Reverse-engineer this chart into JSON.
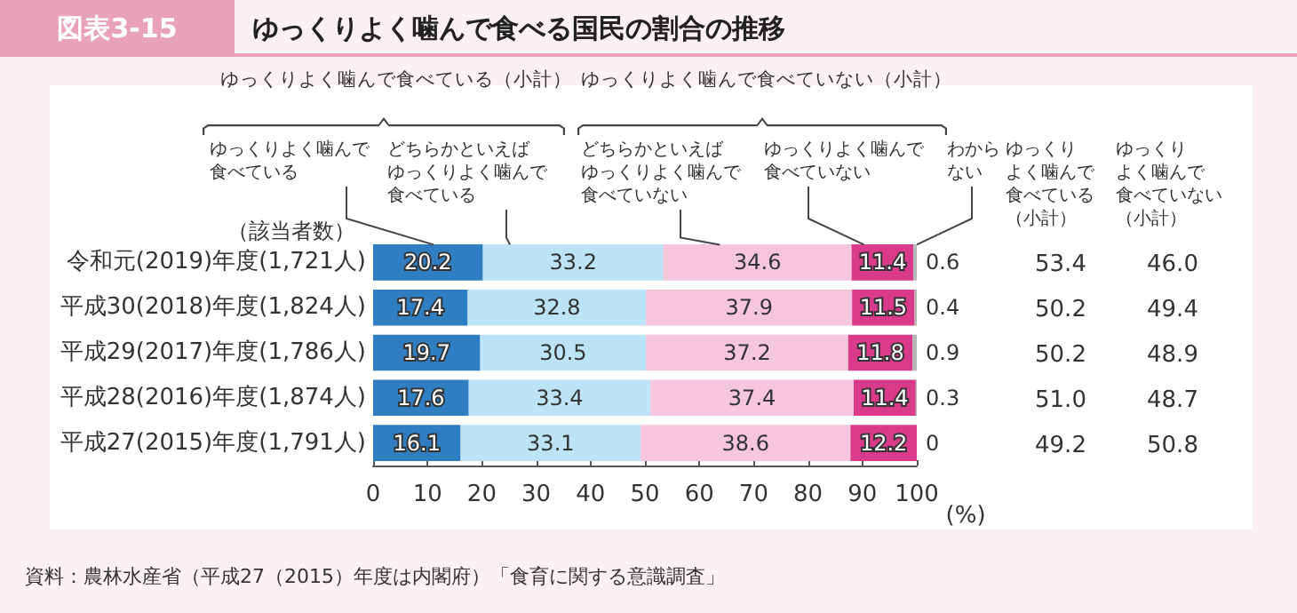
{
  "chart_data": {
    "type": "bar",
    "orientation": "horizontal",
    "stacked": true,
    "data_labels": true,
    "grid": false,
    "title": "ゆっくりよく噛んで食べる国民の割合の推移",
    "xlabel": "(%)",
    "categories": [
      "令和元(2019)年度(1,721人)",
      "平成30(2018)年度(1,824人)",
      "平成29(2017)年度(1,786人)",
      "平成28(2016)年度(1,874人)",
      "平成27(2015)年度(1,791人)"
    ],
    "xlim": [
      0,
      100
    ],
    "xticks": [
      0,
      10,
      20,
      30,
      40,
      50,
      60,
      70,
      80,
      90,
      100
    ],
    "series": [
      {
        "name": "ゆっくりよく噛んで食べている",
        "color": "#2f7ec1",
        "values": [
          20.2,
          17.4,
          19.7,
          17.6,
          16.1
        ]
      },
      {
        "name": "どちらかといえばゆっくりよく噛んで食べている",
        "color": "#bde3f6",
        "values": [
          33.2,
          32.8,
          30.5,
          33.4,
          33.1
        ]
      },
      {
        "name": "どちらかといえばゆっくりよく噛んで食べていない",
        "color": "#f5c6dc",
        "values": [
          34.6,
          37.9,
          37.2,
          37.4,
          38.6
        ]
      },
      {
        "name": "ゆっくりよく噛んで食べていない",
        "color": "#d93a8a",
        "values": [
          11.4,
          11.5,
          11.8,
          11.4,
          12.2
        ]
      },
      {
        "name": "わからない",
        "color": "#b5b5b5",
        "values": [
          0.6,
          0.4,
          0.9,
          0.3,
          0
        ]
      }
    ],
    "annotations": [
      "図表3-15",
      "ゆっくりよく噛んで食べている（小計）",
      "ゆっくりよく噛んで食べていない（小計）",
      "（該当者数）",
      "ゆっくりよく噛んで食べている（小計）",
      "ゆっくりよく噛んで食べていない（小計）",
      "資料：農林水産省（平成27（2015）年度は内閣府）「食育に関する意識調査」",
      "53.4",
      "46.0",
      "50.2",
      "49.4",
      "50.2",
      "48.9",
      "51.0",
      "48.7",
      "49.2",
      "50.8"
    ]
  }
}
